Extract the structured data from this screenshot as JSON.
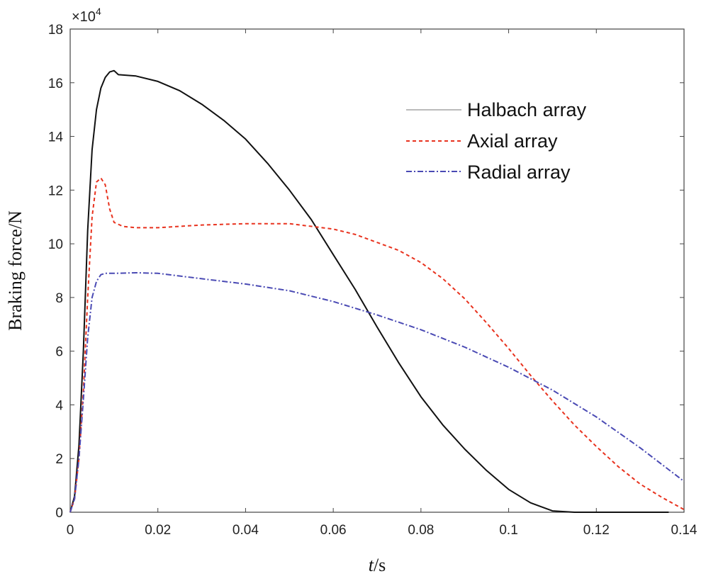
{
  "chart_data": {
    "type": "line",
    "title": "",
    "xlabel_var": "t",
    "xlabel_unit": "/s",
    "ylabel": "Braking force/N",
    "y_exponent_base": "×10",
    "y_exponent_power": "4",
    "xlim": [
      0,
      0.14
    ],
    "ylim": [
      0,
      18
    ],
    "x_ticks": [
      0,
      0.02,
      0.04,
      0.06,
      0.08,
      0.1,
      0.12,
      0.14
    ],
    "x_tick_labels": [
      "0",
      "0.02",
      "0.04",
      "0.06",
      "0.08",
      "0.1",
      "0.12",
      "0.14"
    ],
    "y_ticks": [
      0,
      2,
      4,
      6,
      8,
      10,
      12,
      14,
      16,
      18
    ],
    "y_tick_labels": [
      "0",
      "2",
      "4",
      "6",
      "8",
      "10",
      "12",
      "14",
      "16",
      "18"
    ],
    "grid": false,
    "legend_position": "top-right",
    "series": [
      {
        "name": "Halbach array",
        "color": "#111111",
        "legend_color": "#bbbbbb",
        "dash": "solid",
        "points": [
          [
            0,
            0
          ],
          [
            0.001,
            0.6
          ],
          [
            0.002,
            2.5
          ],
          [
            0.003,
            6.0
          ],
          [
            0.004,
            10.5
          ],
          [
            0.005,
            13.5
          ],
          [
            0.006,
            15.0
          ],
          [
            0.007,
            15.8
          ],
          [
            0.008,
            16.2
          ],
          [
            0.009,
            16.4
          ],
          [
            0.01,
            16.45
          ],
          [
            0.011,
            16.3
          ],
          [
            0.015,
            16.25
          ],
          [
            0.02,
            16.05
          ],
          [
            0.025,
            15.7
          ],
          [
            0.03,
            15.2
          ],
          [
            0.035,
            14.6
          ],
          [
            0.04,
            13.9
          ],
          [
            0.045,
            13.0
          ],
          [
            0.05,
            12.0
          ],
          [
            0.055,
            10.9
          ],
          [
            0.06,
            9.6
          ],
          [
            0.065,
            8.3
          ],
          [
            0.07,
            6.9
          ],
          [
            0.075,
            5.55
          ],
          [
            0.08,
            4.3
          ],
          [
            0.085,
            3.25
          ],
          [
            0.09,
            2.35
          ],
          [
            0.095,
            1.55
          ],
          [
            0.1,
            0.85
          ],
          [
            0.105,
            0.35
          ],
          [
            0.11,
            0.05
          ],
          [
            0.115,
            0.0
          ],
          [
            0.12,
            0.0
          ],
          [
            0.125,
            0.0
          ],
          [
            0.13,
            0.0
          ],
          [
            0.1365,
            0.0
          ]
        ]
      },
      {
        "name": "Axial array",
        "color": "#e8321e",
        "legend_color": "#e8321e",
        "dash": "dashed",
        "points": [
          [
            0,
            0
          ],
          [
            0.001,
            0.5
          ],
          [
            0.002,
            2.0
          ],
          [
            0.003,
            4.5
          ],
          [
            0.004,
            8.0
          ],
          [
            0.005,
            11.0
          ],
          [
            0.006,
            12.3
          ],
          [
            0.007,
            12.45
          ],
          [
            0.008,
            12.2
          ],
          [
            0.009,
            11.3
          ],
          [
            0.01,
            10.8
          ],
          [
            0.012,
            10.65
          ],
          [
            0.015,
            10.6
          ],
          [
            0.02,
            10.6
          ],
          [
            0.03,
            10.7
          ],
          [
            0.04,
            10.75
          ],
          [
            0.05,
            10.75
          ],
          [
            0.06,
            10.55
          ],
          [
            0.065,
            10.35
          ],
          [
            0.07,
            10.05
          ],
          [
            0.075,
            9.75
          ],
          [
            0.08,
            9.3
          ],
          [
            0.085,
            8.7
          ],
          [
            0.09,
            7.95
          ],
          [
            0.095,
            7.05
          ],
          [
            0.1,
            6.1
          ],
          [
            0.105,
            5.1
          ],
          [
            0.11,
            4.15
          ],
          [
            0.115,
            3.25
          ],
          [
            0.12,
            2.45
          ],
          [
            0.125,
            1.7
          ],
          [
            0.13,
            1.05
          ],
          [
            0.135,
            0.55
          ],
          [
            0.14,
            0.1
          ]
        ]
      },
      {
        "name": "Radial array",
        "color": "#4a4ab4",
        "legend_color": "#4a4ab4",
        "dash": "dashdot",
        "points": [
          [
            0,
            0
          ],
          [
            0.001,
            0.5
          ],
          [
            0.002,
            2.0
          ],
          [
            0.003,
            4.2
          ],
          [
            0.004,
            6.5
          ],
          [
            0.005,
            8.0
          ],
          [
            0.006,
            8.6
          ],
          [
            0.007,
            8.85
          ],
          [
            0.008,
            8.9
          ],
          [
            0.01,
            8.9
          ],
          [
            0.015,
            8.92
          ],
          [
            0.02,
            8.9
          ],
          [
            0.03,
            8.7
          ],
          [
            0.04,
            8.5
          ],
          [
            0.05,
            8.25
          ],
          [
            0.06,
            7.85
          ],
          [
            0.07,
            7.35
          ],
          [
            0.08,
            6.8
          ],
          [
            0.09,
            6.15
          ],
          [
            0.1,
            5.4
          ],
          [
            0.11,
            4.55
          ],
          [
            0.12,
            3.55
          ],
          [
            0.13,
            2.4
          ],
          [
            0.14,
            1.15
          ]
        ]
      }
    ]
  }
}
